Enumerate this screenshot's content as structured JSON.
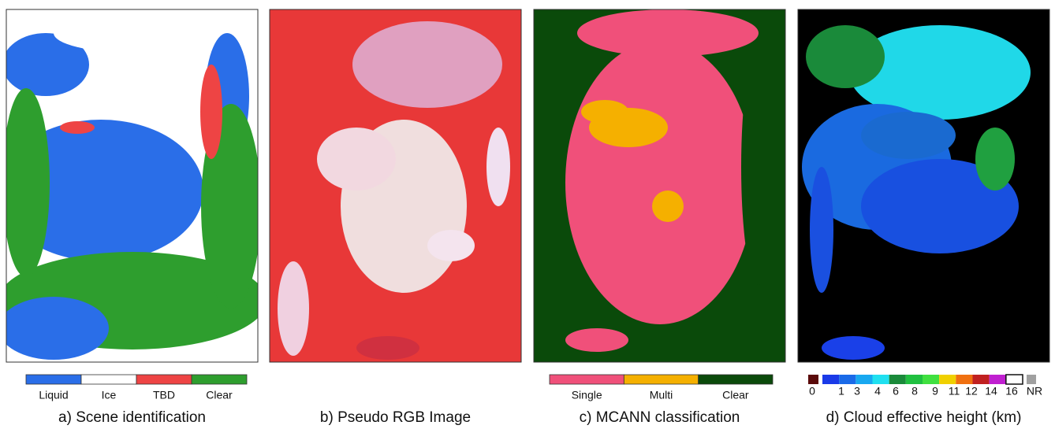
{
  "panels": [
    {
      "caption": "a) Scene identification",
      "legend": [
        {
          "label": "Liquid",
          "color": "#2a6ee8"
        },
        {
          "label": "Ice",
          "color": "#ffffff"
        },
        {
          "label": "TBD",
          "color": "#ee4444"
        },
        {
          "label": "Clear",
          "color": "#2e9e2e"
        }
      ]
    },
    {
      "caption": "b) Pseudo RGB Image"
    },
    {
      "caption": "c) MCANN classification",
      "legend": [
        {
          "label": "Single",
          "color": "#f0507a"
        },
        {
          "label": "Multi",
          "color": "#f5b000"
        },
        {
          "label": "Clear",
          "color": "#0b4a0b"
        }
      ]
    },
    {
      "caption": "d) Cloud effective height (km)",
      "legend_colors": [
        "#5a0a0a",
        "#1a3ae8",
        "#1a6ae8",
        "#18a8f0",
        "#20e0f0",
        "#1a8a3a",
        "#20c040",
        "#40e040",
        "#f0d000",
        "#f07010",
        "#c02020",
        "#c020d0",
        "#ffffff",
        "#a0a0a0"
      ],
      "legend_ticks": [
        "0",
        "1",
        "3",
        "4",
        "6",
        "8",
        "9",
        "11",
        "12",
        "14",
        "16",
        "NR"
      ]
    }
  ]
}
